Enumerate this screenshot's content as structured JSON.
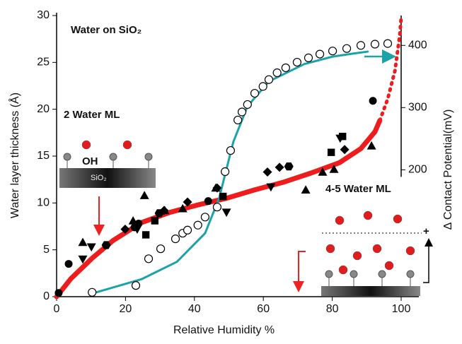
{
  "chart_data": {
    "type": "scatter",
    "title": "Water on SiO₂",
    "xlabel": "Relative Humidity %",
    "ylabel": "Water layer thickness (Å)",
    "y2label": "Δ Contact Potential(mV)",
    "annotations": [
      "2 Water ML",
      "4-5 Water ML",
      "OH",
      "SiO₂",
      "+"
    ],
    "xlim": [
      0,
      100
    ],
    "xticks": [
      0,
      20,
      40,
      60,
      80,
      100
    ],
    "ylim": [
      0,
      30
    ],
    "yticks": [
      0,
      5,
      10,
      15,
      20,
      25,
      30
    ],
    "y2lim": [
      -4,
      448
    ],
    "y2ticks": [
      200,
      300,
      400
    ],
    "series": [
      {
        "style": "line",
        "color": "#ee1c1c",
        "x": [
          0,
          4.1,
          10.3,
          16.4,
          24.6,
          32.9,
          41.1,
          49.3,
          57.5,
          65.7,
          73.9,
          82.1,
          88.3,
          92.4,
          93.8
        ],
        "values": [
          0,
          1.9,
          4.1,
          6.0,
          7.9,
          9.0,
          9.8,
          10.5,
          11.4,
          12.2,
          13.2,
          14.3,
          15.8,
          17.6,
          18.8
        ]
      },
      {
        "style": "dotted",
        "color": "#ee1c1c",
        "x": [
          93.8,
          96.1,
          98.2,
          99.6,
          100
        ],
        "values": [
          18.8,
          21.1,
          24.1,
          27.9,
          29.8
        ]
      },
      {
        "style": "line",
        "color": "#1ba3a8",
        "axis": "y2",
        "x": [
          10.3,
          24.6,
          34.9,
          43.1,
          47.2,
          51.3,
          55.4,
          61.6,
          71.9,
          80.1,
          86.2,
          90.3
        ],
        "values": [
          1,
          24,
          52,
          98,
          155,
          245,
          302,
          342,
          370,
          382,
          387,
          390
        ]
      },
      {
        "style": "marker",
        "marker": "open-circle",
        "color": "#000000",
        "axis": "y2",
        "x": [
          10.3,
          23,
          26.7,
          30.2,
          34.5,
          36.6,
          38,
          41,
          43.1,
          46.6,
          48.9,
          50.5,
          52.6,
          53.8,
          55.4,
          57.5,
          59.9,
          61.6,
          64,
          66.5,
          69.8,
          73.1,
          76.4,
          80.1,
          84.2,
          88.3,
          92.4,
          96.1
        ],
        "values": [
          3,
          14,
          57,
          73,
          89,
          98,
          103,
          111,
          124,
          140,
          197,
          231,
          280,
          293,
          305,
          323,
          334,
          345,
          356,
          364,
          373,
          380,
          386,
          391,
          395,
          400,
          402,
          403
        ]
      },
      {
        "style": "marker",
        "marker": "circle",
        "color": "#000000",
        "x": [
          0.6,
          3.5,
          22.6,
          23.8,
          44,
          91.8
        ],
        "values": [
          0.4,
          3.5,
          7.4,
          7.8,
          10.2,
          20.9
        ]
      },
      {
        "style": "marker",
        "marker": "triangle",
        "color": "#000000",
        "x": [
          7.6,
          22.2,
          25.5,
          31.4,
          36.6,
          46.2,
          72.3,
          77.2,
          80.5,
          91.4
        ],
        "values": [
          5.8,
          8.1,
          10.8,
          9.2,
          9.4,
          11.6,
          11.4,
          13.3,
          13.6,
          16.1
        ]
      },
      {
        "style": "marker",
        "marker": "triangle-down",
        "color": "#000000",
        "x": [
          7.6,
          10.1,
          23.4,
          49.3,
          62.2,
          82.3
        ],
        "values": [
          4,
          5.3,
          7.2,
          9.0,
          11.7,
          16.9
        ]
      },
      {
        "style": "marker",
        "marker": "square",
        "color": "#000000",
        "x": [
          25.9,
          28.5,
          48.3,
          79.7,
          83
        ],
        "values": [
          6.6,
          8.1,
          10.7,
          15.4,
          17.1
        ]
      },
      {
        "style": "marker",
        "marker": "diamond",
        "color": "#000000",
        "x": [
          19.9,
          31.2,
          38,
          46.6,
          61.2,
          64.7,
          83.6
        ],
        "values": [
          7.2,
          9.2,
          10.1,
          11.6,
          13.3,
          13.8,
          15.7
        ]
      },
      {
        "style": "marker",
        "marker": "hexagon",
        "color": "#000000",
        "x": [
          14.4,
          29.8,
          67.4
        ],
        "values": [
          5.5,
          8.9,
          13.9
        ]
      }
    ]
  }
}
